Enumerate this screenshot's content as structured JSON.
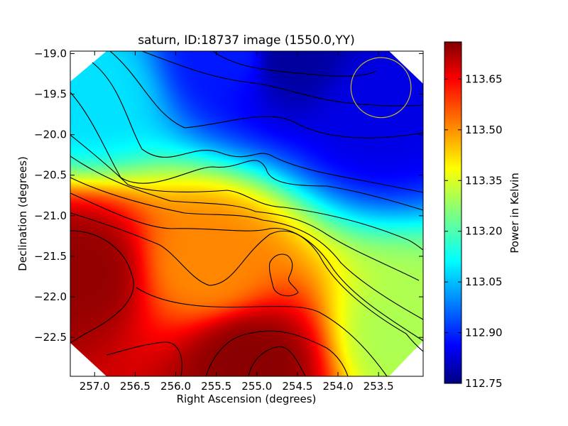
{
  "chart_data": {
    "type": "heatmap",
    "title": "saturn, ID:18737 image (1550.0,YY)",
    "xlabel": "Right Ascension (degrees)",
    "ylabel": "Declination (degrees)",
    "xlim": [
      257.3,
      252.95
    ],
    "ylim": [
      -22.98,
      -18.97
    ],
    "x_ticks": [
      257.0,
      256.5,
      256.0,
      255.5,
      255.0,
      254.5,
      254.0,
      253.5
    ],
    "x_tick_labels": [
      "257.0",
      "256.5",
      "256.0",
      "255.5",
      "255.0",
      "254.5",
      "254.0",
      "253.5"
    ],
    "y_ticks": [
      -19.0,
      -19.5,
      -20.0,
      -20.5,
      -21.0,
      -21.5,
      -22.0,
      -22.5
    ],
    "y_tick_labels": [
      "−19.0",
      "−19.5",
      "−20.0",
      "−20.5",
      "−21.0",
      "−21.5",
      "−22.0",
      "−22.5"
    ],
    "colorbar": {
      "label": "Power in Kelvin",
      "range": [
        112.75,
        113.76
      ],
      "colormap": "jet",
      "ticks": [
        113.65,
        113.5,
        113.35,
        113.2,
        113.05,
        112.9,
        112.75
      ],
      "tick_labels": [
        "113.65",
        "113.50",
        "113.35",
        "113.20",
        "113.05",
        "112.90",
        "112.75"
      ]
    },
    "field_summary": [
      {
        "ra": 257.2,
        "dec": -21.7,
        "value": 113.74
      },
      {
        "ra": 255.1,
        "dec": -22.85,
        "value": 113.75
      },
      {
        "ra": 255.6,
        "dec": -21.6,
        "value": 113.5
      },
      {
        "ra": 255.3,
        "dec": -19.0,
        "value": 112.9
      },
      {
        "ra": 254.6,
        "dec": -19.0,
        "value": 112.78
      },
      {
        "ra": 253.5,
        "dec": -19.7,
        "value": 112.85
      },
      {
        "ra": 257.1,
        "dec": -19.5,
        "value": 113.1
      },
      {
        "ra": 253.1,
        "dec": -22.5,
        "value": 113.3
      }
    ],
    "annotations": [
      {
        "type": "circle",
        "ra_center": 253.47,
        "dec_center": -19.42,
        "radius_deg": 0.37,
        "color": "#c9b820"
      }
    ],
    "grid": false,
    "contours": true,
    "colors": {
      "jet_stops": [
        "#000080",
        "#0000ff",
        "#00ffff",
        "#7fff7f",
        "#ffff00",
        "#ff0000",
        "#800000"
      ],
      "circle": "#c9b820",
      "contour": "#000000"
    }
  }
}
